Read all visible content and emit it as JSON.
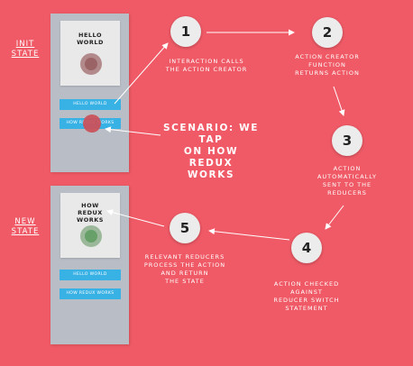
{
  "labels": {
    "init_state": "INIT\nSTATE",
    "new_state": "NEW\nSTATE",
    "scenario": "SCENARIO: WE TAP\nON HOW REDUX\nWORKS"
  },
  "phone_init": {
    "screen_text": "HELLO\nWORLD",
    "button_hello": "HELLO WORLD",
    "button_redux": "HOW REDUX WORKS"
  },
  "phone_new": {
    "screen_text": "HOW\nREDUX\nWORKS",
    "button_hello": "HELLO WORLD",
    "button_redux": "HOW REDUX WORKS"
  },
  "steps": [
    {
      "number": "1",
      "text": "INTERACTION CALLS\nTHE ACTION CREATOR"
    },
    {
      "number": "2",
      "text": "ACTION CREATOR\nFUNCTION\nRETURNS ACTION"
    },
    {
      "number": "3",
      "text": "ACTION\nAUTOMATICALLY\nSENT TO THE\nREDUCERS"
    },
    {
      "number": "4",
      "text": "ACTION CHECKED\nAGAINST\nREDUCER SWITCH\nSTATEMENT"
    },
    {
      "number": "5",
      "text": "RELEVANT REDUCERS\nPROCESS THE ACTION\nAND RETURN\nTHE STATE"
    }
  ],
  "colors": {
    "background": "#ef5a66",
    "button": "#38b1e5",
    "phone": "#b9bec6",
    "step_circle": "#ececec"
  }
}
